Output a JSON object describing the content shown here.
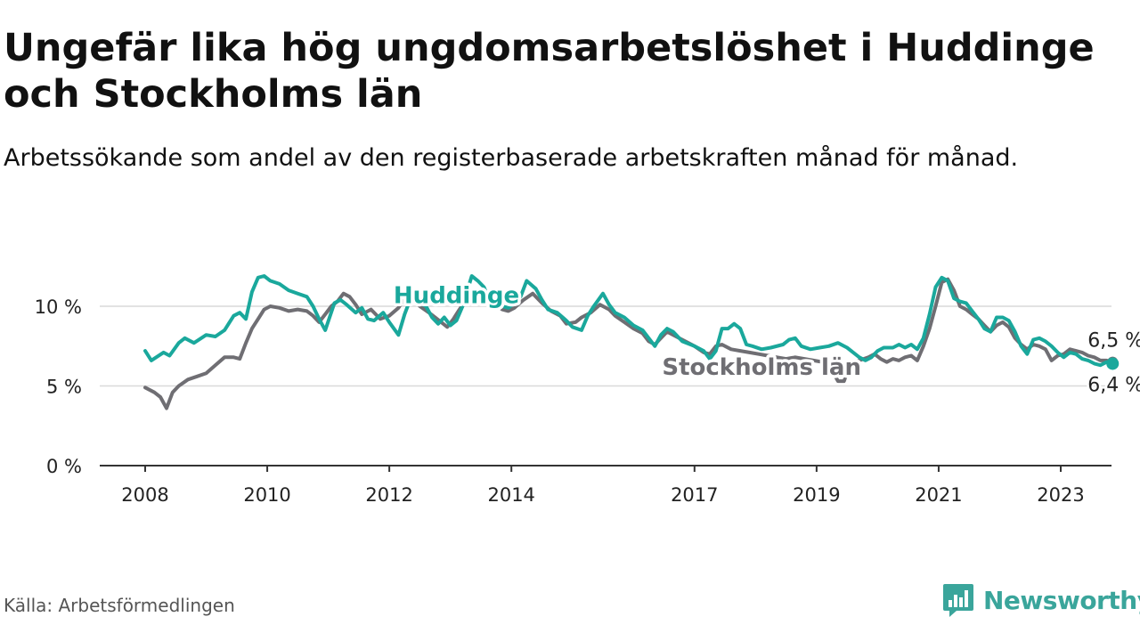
{
  "title": "Ungefär lika hög ungdomsarbetslöshet i Huddinge och Stockholms län",
  "subtitle": "Arbetssökande som andel av den registerbaserade arbetskraften månad för månad.",
  "source": "Källa: Arbetsförmedlingen",
  "brand": {
    "name": "Newsworthy",
    "icon": "newsworthy-logo-icon"
  },
  "colors": {
    "huddinge": "#1aa89c",
    "stockholm": "#6f6e73",
    "grid": "#d9d9d9",
    "axis": "#333333",
    "text": "#222222"
  },
  "chart_data": {
    "type": "line",
    "title": "Ungefär lika hög ungdomsarbetslöshet i Huddinge och Stockholms län",
    "xlabel": "",
    "ylabel": "",
    "ylim": [
      0,
      12
    ],
    "xlim": [
      2008.0,
      2024.0
    ],
    "y_ticks": [
      0,
      5,
      10
    ],
    "y_tick_labels": [
      "0 %",
      "5 %",
      "10 %"
    ],
    "x_ticks": [
      2008,
      2010,
      2012,
      2014,
      2017,
      2019,
      2021,
      2023
    ],
    "x_tick_labels": [
      "2008",
      "2010",
      "2012",
      "2014",
      "2017",
      "2019",
      "2021",
      "2023"
    ],
    "grid": true,
    "legend": "direct labels on lines",
    "end_labels": {
      "huddinge": "6,4 %",
      "stockholm": "6,5 %"
    },
    "series": [
      {
        "name": "Huddinge",
        "color": "#1aa89c",
        "points": [
          [
            2008.0,
            7.2
          ],
          [
            2008.1,
            6.6
          ],
          [
            2008.3,
            7.1
          ],
          [
            2008.4,
            6.9
          ],
          [
            2008.55,
            7.7
          ],
          [
            2008.65,
            8.0
          ],
          [
            2008.8,
            7.7
          ],
          [
            2009.0,
            8.2
          ],
          [
            2009.15,
            8.1
          ],
          [
            2009.3,
            8.5
          ],
          [
            2009.45,
            9.4
          ],
          [
            2009.55,
            9.6
          ],
          [
            2009.65,
            9.2
          ],
          [
            2009.75,
            10.9
          ],
          [
            2009.85,
            11.8
          ],
          [
            2009.95,
            11.9
          ],
          [
            2010.05,
            11.6
          ],
          [
            2010.2,
            11.4
          ],
          [
            2010.35,
            11.0
          ],
          [
            2010.5,
            10.8
          ],
          [
            2010.65,
            10.6
          ],
          [
            2010.75,
            10.0
          ],
          [
            2010.85,
            9.2
          ],
          [
            2010.95,
            8.5
          ],
          [
            2011.1,
            10.2
          ],
          [
            2011.2,
            10.4
          ],
          [
            2011.3,
            10.1
          ],
          [
            2011.45,
            9.6
          ],
          [
            2011.55,
            9.9
          ],
          [
            2011.65,
            9.2
          ],
          [
            2011.75,
            9.1
          ],
          [
            2011.9,
            9.6
          ],
          [
            2012.0,
            9.0
          ],
          [
            2012.15,
            8.2
          ],
          [
            2012.25,
            9.5
          ],
          [
            2012.35,
            10.5
          ],
          [
            2012.45,
            10.3
          ],
          [
            2012.6,
            10.0
          ],
          [
            2012.7,
            9.3
          ],
          [
            2012.8,
            8.9
          ],
          [
            2012.9,
            9.3
          ],
          [
            2013.0,
            8.8
          ],
          [
            2013.1,
            9.1
          ],
          [
            2013.2,
            10.0
          ],
          [
            2013.35,
            11.9
          ],
          [
            2013.45,
            11.6
          ],
          [
            2013.55,
            11.2
          ],
          [
            2013.65,
            10.3
          ],
          [
            2013.75,
            10.4
          ],
          [
            2013.85,
            10.0
          ],
          [
            2013.95,
            9.9
          ],
          [
            2014.05,
            10.2
          ],
          [
            2014.15,
            10.6
          ],
          [
            2014.25,
            11.6
          ],
          [
            2014.4,
            11.1
          ],
          [
            2014.5,
            10.4
          ],
          [
            2014.6,
            9.8
          ],
          [
            2014.75,
            9.6
          ],
          [
            2014.9,
            9.1
          ],
          [
            2015.0,
            8.7
          ],
          [
            2015.15,
            8.5
          ],
          [
            2015.25,
            9.4
          ],
          [
            2015.35,
            10.0
          ],
          [
            2015.5,
            10.8
          ],
          [
            2015.6,
            10.1
          ],
          [
            2015.7,
            9.6
          ],
          [
            2015.85,
            9.3
          ],
          [
            2016.0,
            8.8
          ],
          [
            2016.15,
            8.5
          ],
          [
            2016.25,
            8.0
          ],
          [
            2016.35,
            7.5
          ],
          [
            2016.45,
            8.2
          ],
          [
            2016.55,
            8.6
          ],
          [
            2016.65,
            8.4
          ],
          [
            2016.8,
            7.8
          ],
          [
            2017.0,
            7.5
          ],
          [
            2017.15,
            7.2
          ],
          [
            2017.25,
            6.7
          ],
          [
            2017.35,
            7.2
          ],
          [
            2017.45,
            8.6
          ],
          [
            2017.55,
            8.6
          ],
          [
            2017.65,
            8.9
          ],
          [
            2017.75,
            8.6
          ],
          [
            2017.85,
            7.6
          ],
          [
            2017.95,
            7.5
          ],
          [
            2018.1,
            7.3
          ],
          [
            2018.25,
            7.4
          ],
          [
            2018.45,
            7.6
          ],
          [
            2018.55,
            7.9
          ],
          [
            2018.65,
            8.0
          ],
          [
            2018.75,
            7.5
          ],
          [
            2018.9,
            7.3
          ],
          [
            2019.05,
            7.4
          ],
          [
            2019.2,
            7.5
          ],
          [
            2019.35,
            7.7
          ],
          [
            2019.5,
            7.4
          ],
          [
            2019.6,
            7.1
          ],
          [
            2019.7,
            6.8
          ],
          [
            2019.8,
            6.6
          ],
          [
            2019.9,
            6.8
          ],
          [
            2020.0,
            7.2
          ],
          [
            2020.1,
            7.4
          ],
          [
            2020.25,
            7.4
          ],
          [
            2020.35,
            7.6
          ],
          [
            2020.45,
            7.4
          ],
          [
            2020.55,
            7.6
          ],
          [
            2020.65,
            7.3
          ],
          [
            2020.75,
            8.0
          ],
          [
            2020.85,
            9.5
          ],
          [
            2020.95,
            11.2
          ],
          [
            2021.05,
            11.8
          ],
          [
            2021.15,
            11.6
          ],
          [
            2021.25,
            10.5
          ],
          [
            2021.35,
            10.3
          ],
          [
            2021.45,
            10.2
          ],
          [
            2021.55,
            9.7
          ],
          [
            2021.65,
            9.2
          ],
          [
            2021.75,
            8.6
          ],
          [
            2021.85,
            8.4
          ],
          [
            2021.95,
            9.3
          ],
          [
            2022.05,
            9.3
          ],
          [
            2022.15,
            9.1
          ],
          [
            2022.25,
            8.4
          ],
          [
            2022.35,
            7.5
          ],
          [
            2022.45,
            7.0
          ],
          [
            2022.55,
            7.9
          ],
          [
            2022.65,
            8.0
          ],
          [
            2022.75,
            7.8
          ],
          [
            2022.85,
            7.5
          ],
          [
            2022.95,
            7.1
          ],
          [
            2023.05,
            6.8
          ],
          [
            2023.15,
            7.1
          ],
          [
            2023.25,
            7.0
          ],
          [
            2023.35,
            6.7
          ],
          [
            2023.45,
            6.6
          ],
          [
            2023.55,
            6.4
          ],
          [
            2023.65,
            6.3
          ],
          [
            2023.75,
            6.5
          ],
          [
            2023.85,
            6.4
          ]
        ]
      },
      {
        "name": "Stockholms län",
        "color": "#6f6e73",
        "points": [
          [
            2008.0,
            4.9
          ],
          [
            2008.15,
            4.6
          ],
          [
            2008.25,
            4.3
          ],
          [
            2008.35,
            3.6
          ],
          [
            2008.45,
            4.6
          ],
          [
            2008.55,
            5.0
          ],
          [
            2008.7,
            5.4
          ],
          [
            2008.85,
            5.6
          ],
          [
            2009.0,
            5.8
          ],
          [
            2009.15,
            6.3
          ],
          [
            2009.3,
            6.8
          ],
          [
            2009.45,
            6.8
          ],
          [
            2009.55,
            6.7
          ],
          [
            2009.65,
            7.7
          ],
          [
            2009.75,
            8.6
          ],
          [
            2009.85,
            9.2
          ],
          [
            2009.95,
            9.8
          ],
          [
            2010.05,
            10.0
          ],
          [
            2010.2,
            9.9
          ],
          [
            2010.35,
            9.7
          ],
          [
            2010.5,
            9.8
          ],
          [
            2010.65,
            9.7
          ],
          [
            2010.75,
            9.4
          ],
          [
            2010.85,
            9.0
          ],
          [
            2010.95,
            9.5
          ],
          [
            2011.05,
            10.0
          ],
          [
            2011.15,
            10.3
          ],
          [
            2011.25,
            10.8
          ],
          [
            2011.35,
            10.6
          ],
          [
            2011.45,
            10.1
          ],
          [
            2011.55,
            9.5
          ],
          [
            2011.7,
            9.8
          ],
          [
            2011.85,
            9.2
          ],
          [
            2012.0,
            9.4
          ],
          [
            2012.15,
            9.9
          ],
          [
            2012.25,
            10.5
          ],
          [
            2012.35,
            10.6
          ],
          [
            2012.5,
            10.0
          ],
          [
            2012.65,
            9.6
          ],
          [
            2012.75,
            9.3
          ],
          [
            2012.85,
            9.0
          ],
          [
            2012.95,
            8.7
          ],
          [
            2013.05,
            9.2
          ],
          [
            2013.15,
            9.8
          ],
          [
            2013.35,
            10.9
          ],
          [
            2013.5,
            10.7
          ],
          [
            2013.65,
            10.3
          ],
          [
            2013.75,
            10.1
          ],
          [
            2013.85,
            9.8
          ],
          [
            2013.95,
            9.7
          ],
          [
            2014.05,
            9.9
          ],
          [
            2014.2,
            10.4
          ],
          [
            2014.35,
            10.8
          ],
          [
            2014.5,
            10.2
          ],
          [
            2014.65,
            9.7
          ],
          [
            2014.8,
            9.4
          ],
          [
            2014.9,
            8.9
          ],
          [
            2015.05,
            9.0
          ],
          [
            2015.15,
            9.3
          ],
          [
            2015.3,
            9.6
          ],
          [
            2015.45,
            10.1
          ],
          [
            2015.6,
            9.8
          ],
          [
            2015.7,
            9.4
          ],
          [
            2015.85,
            9.0
          ],
          [
            2016.0,
            8.6
          ],
          [
            2016.15,
            8.3
          ],
          [
            2016.25,
            7.8
          ],
          [
            2016.35,
            7.6
          ],
          [
            2016.45,
            8.0
          ],
          [
            2016.55,
            8.4
          ],
          [
            2016.7,
            8.1
          ],
          [
            2016.85,
            7.8
          ],
          [
            2017.0,
            7.5
          ],
          [
            2017.15,
            7.1
          ],
          [
            2017.25,
            7.0
          ],
          [
            2017.35,
            7.5
          ],
          [
            2017.45,
            7.6
          ],
          [
            2017.6,
            7.3
          ],
          [
            2017.75,
            7.2
          ],
          [
            2017.9,
            7.1
          ],
          [
            2018.05,
            7.0
          ],
          [
            2018.2,
            6.9
          ],
          [
            2018.35,
            6.8
          ],
          [
            2018.5,
            6.7
          ],
          [
            2018.65,
            6.8
          ],
          [
            2018.8,
            6.7
          ],
          [
            2018.95,
            6.6
          ],
          [
            2019.1,
            6.5
          ],
          [
            2019.25,
            6.0
          ],
          [
            2019.35,
            5.3
          ],
          [
            2019.45,
            5.3
          ],
          [
            2019.55,
            6.4
          ],
          [
            2019.7,
            6.6
          ],
          [
            2019.85,
            6.8
          ],
          [
            2019.95,
            7.0
          ],
          [
            2020.05,
            6.7
          ],
          [
            2020.15,
            6.5
          ],
          [
            2020.25,
            6.7
          ],
          [
            2020.35,
            6.6
          ],
          [
            2020.45,
            6.8
          ],
          [
            2020.55,
            6.9
          ],
          [
            2020.65,
            6.6
          ],
          [
            2020.75,
            7.5
          ],
          [
            2020.85,
            8.6
          ],
          [
            2020.95,
            10.0
          ],
          [
            2021.05,
            11.5
          ],
          [
            2021.15,
            11.7
          ],
          [
            2021.25,
            11.0
          ],
          [
            2021.35,
            10.0
          ],
          [
            2021.45,
            9.8
          ],
          [
            2021.55,
            9.5
          ],
          [
            2021.65,
            9.2
          ],
          [
            2021.75,
            8.8
          ],
          [
            2021.85,
            8.4
          ],
          [
            2021.95,
            8.8
          ],
          [
            2022.05,
            9.0
          ],
          [
            2022.15,
            8.7
          ],
          [
            2022.25,
            8.0
          ],
          [
            2022.35,
            7.6
          ],
          [
            2022.45,
            7.3
          ],
          [
            2022.55,
            7.6
          ],
          [
            2022.65,
            7.5
          ],
          [
            2022.75,
            7.3
          ],
          [
            2022.85,
            6.6
          ],
          [
            2022.95,
            6.9
          ],
          [
            2023.05,
            7.0
          ],
          [
            2023.15,
            7.3
          ],
          [
            2023.25,
            7.2
          ],
          [
            2023.35,
            7.1
          ],
          [
            2023.45,
            6.9
          ],
          [
            2023.55,
            6.8
          ],
          [
            2023.65,
            6.6
          ],
          [
            2023.75,
            6.6
          ],
          [
            2023.85,
            6.5
          ]
        ]
      }
    ],
    "annotations": [
      {
        "text": "Huddinge",
        "series": "Huddinge",
        "x": 2013.1,
        "y": 10.7
      },
      {
        "text": "Stockholms län",
        "series": "Stockholms län",
        "x": 2018.1,
        "y": 6.2
      }
    ]
  }
}
